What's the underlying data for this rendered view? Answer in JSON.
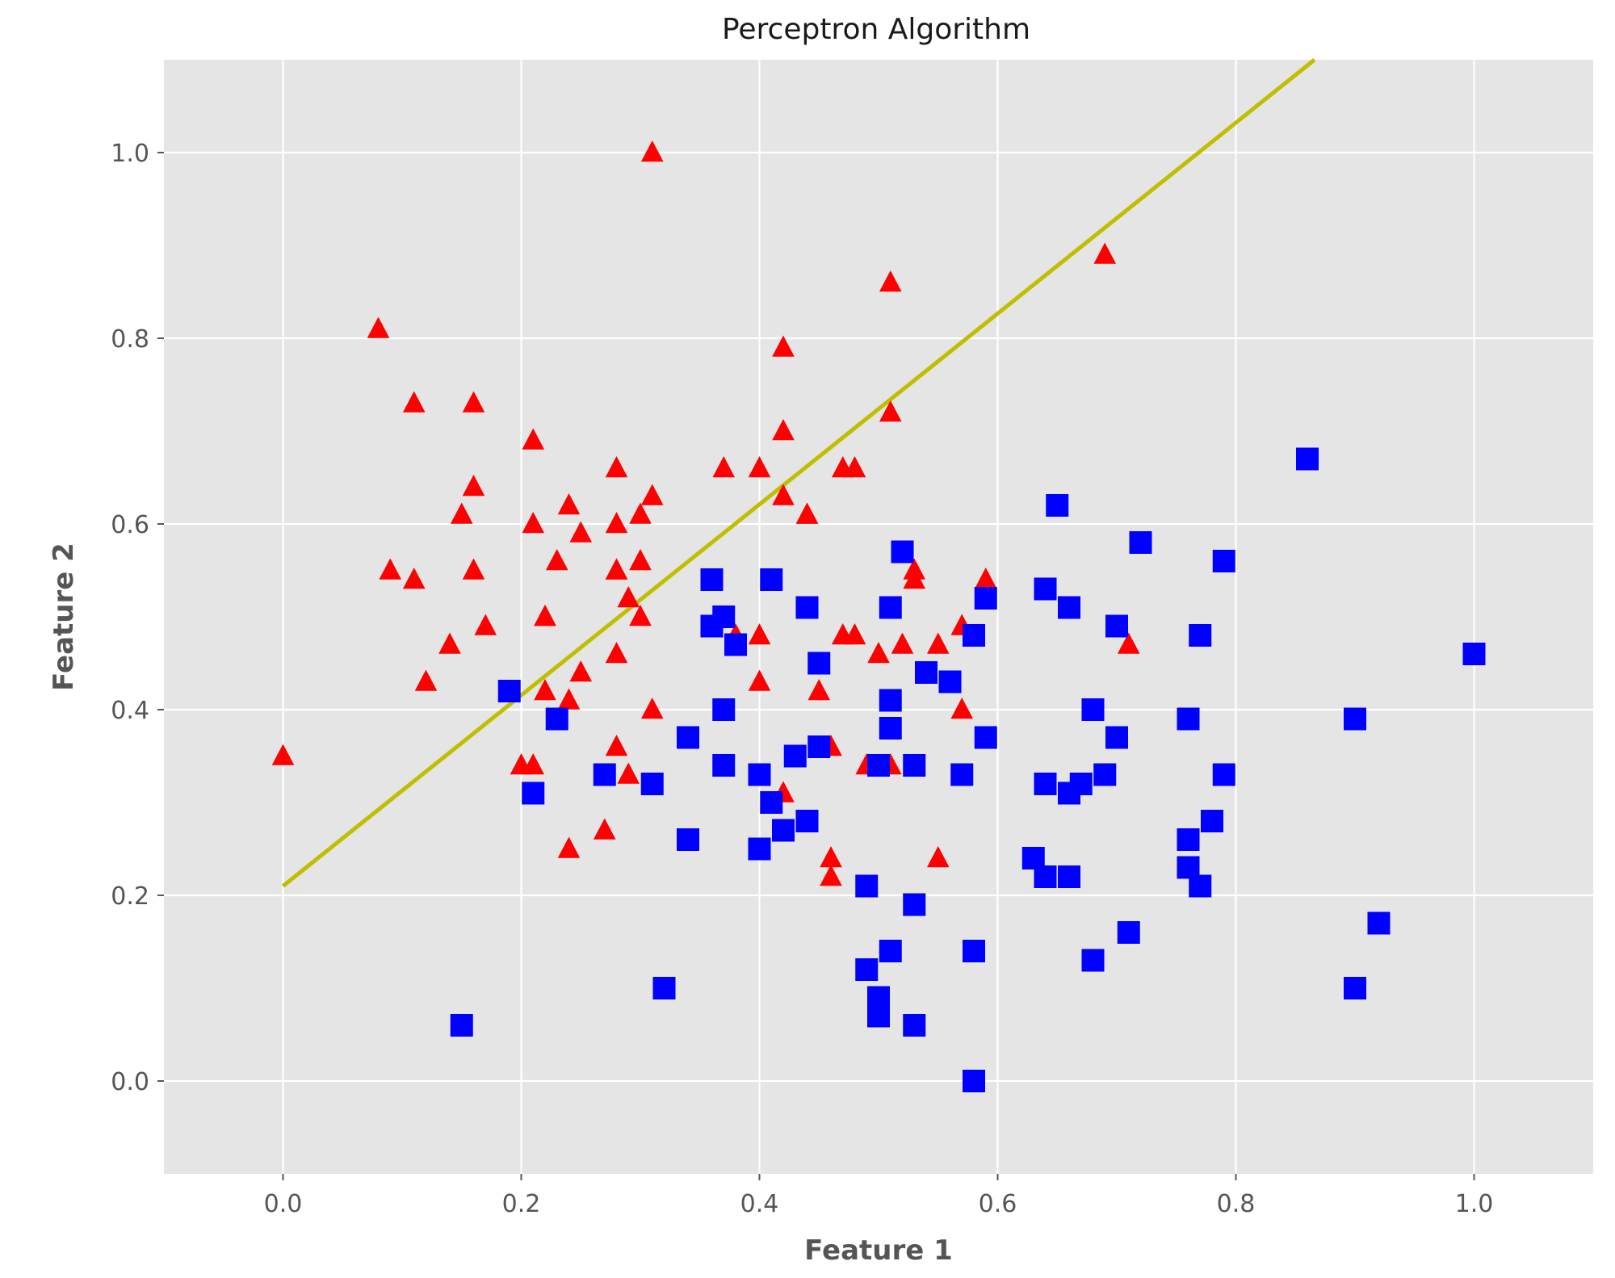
{
  "chart_data": {
    "type": "scatter",
    "title": "Perceptron Algorithm",
    "xlabel": "Feature 1",
    "ylabel": "Feature 2",
    "xlim": [
      -0.1,
      1.1
    ],
    "ylim": [
      -0.1,
      1.1
    ],
    "xticks": [
      "0.0",
      "0.2",
      "0.4",
      "0.6",
      "0.8",
      "1.0"
    ],
    "yticks": [
      "0.0",
      "0.2",
      "0.4",
      "0.6",
      "0.8",
      "1.0"
    ],
    "grid": true,
    "colors": {
      "background": "#e5e5e5",
      "grid": "#ffffff",
      "class_triangle": "#ff0000",
      "class_square": "#0000ff",
      "boundary": "#bfbf00"
    },
    "series": [
      {
        "marker": "triangle",
        "color": "#ff0000",
        "points": [
          [
            0.31,
            1.0
          ],
          [
            0.08,
            0.81
          ],
          [
            0.51,
            0.86
          ],
          [
            0.69,
            0.89
          ],
          [
            0.11,
            0.73
          ],
          [
            0.16,
            0.73
          ],
          [
            0.42,
            0.79
          ],
          [
            0.21,
            0.69
          ],
          [
            0.42,
            0.7
          ],
          [
            0.51,
            0.72
          ],
          [
            0.28,
            0.66
          ],
          [
            0.37,
            0.66
          ],
          [
            0.4,
            0.66
          ],
          [
            0.47,
            0.66
          ],
          [
            0.48,
            0.66
          ],
          [
            0.16,
            0.64
          ],
          [
            0.31,
            0.63
          ],
          [
            0.42,
            0.63
          ],
          [
            0.24,
            0.62
          ],
          [
            0.44,
            0.61
          ],
          [
            0.44,
            0.61
          ],
          [
            0.15,
            0.61
          ],
          [
            0.3,
            0.61
          ],
          [
            0.21,
            0.6
          ],
          [
            0.28,
            0.6
          ],
          [
            0.25,
            0.59
          ],
          [
            0.23,
            0.56
          ],
          [
            0.3,
            0.56
          ],
          [
            0.16,
            0.55
          ],
          [
            0.09,
            0.55
          ],
          [
            0.11,
            0.54
          ],
          [
            0.28,
            0.55
          ],
          [
            0.28,
            0.55
          ],
          [
            0.53,
            0.55
          ],
          [
            0.53,
            0.54
          ],
          [
            0.59,
            0.54
          ],
          [
            0.29,
            0.52
          ],
          [
            0.22,
            0.5
          ],
          [
            0.22,
            0.5
          ],
          [
            0.3,
            0.5
          ],
          [
            0.17,
            0.49
          ],
          [
            0.57,
            0.49
          ],
          [
            0.38,
            0.48
          ],
          [
            0.4,
            0.48
          ],
          [
            0.47,
            0.48
          ],
          [
            0.48,
            0.48
          ],
          [
            0.52,
            0.47
          ],
          [
            0.55,
            0.47
          ],
          [
            0.5,
            0.46
          ],
          [
            0.71,
            0.47
          ],
          [
            0.14,
            0.47
          ],
          [
            0.28,
            0.46
          ],
          [
            0.25,
            0.44
          ],
          [
            0.12,
            0.43
          ],
          [
            0.4,
            0.43
          ],
          [
            0.22,
            0.42
          ],
          [
            0.24,
            0.41
          ],
          [
            0.45,
            0.42
          ],
          [
            0.31,
            0.4
          ],
          [
            0.57,
            0.4
          ],
          [
            0.28,
            0.36
          ],
          [
            0.46,
            0.36
          ],
          [
            0.0,
            0.35
          ],
          [
            0.2,
            0.34
          ],
          [
            0.21,
            0.34
          ],
          [
            0.49,
            0.34
          ],
          [
            0.51,
            0.34
          ],
          [
            0.29,
            0.33
          ],
          [
            0.42,
            0.31
          ],
          [
            0.27,
            0.27
          ],
          [
            0.24,
            0.25
          ],
          [
            0.46,
            0.24
          ],
          [
            0.55,
            0.24
          ],
          [
            0.46,
            0.22
          ]
        ]
      },
      {
        "marker": "square",
        "color": "#0000ff",
        "points": [
          [
            0.86,
            0.67
          ],
          [
            0.65,
            0.62
          ],
          [
            0.72,
            0.58
          ],
          [
            0.52,
            0.57
          ],
          [
            0.79,
            0.56
          ],
          [
            0.41,
            0.54
          ],
          [
            0.36,
            0.54
          ],
          [
            0.64,
            0.53
          ],
          [
            0.59,
            0.52
          ],
          [
            0.66,
            0.51
          ],
          [
            0.44,
            0.51
          ],
          [
            0.51,
            0.51
          ],
          [
            0.37,
            0.5
          ],
          [
            0.36,
            0.49
          ],
          [
            0.7,
            0.49
          ],
          [
            0.58,
            0.48
          ],
          [
            0.77,
            0.48
          ],
          [
            0.38,
            0.47
          ],
          [
            1.0,
            0.46
          ],
          [
            0.45,
            0.45
          ],
          [
            0.54,
            0.44
          ],
          [
            0.56,
            0.43
          ],
          [
            0.19,
            0.42
          ],
          [
            0.51,
            0.41
          ],
          [
            0.68,
            0.4
          ],
          [
            0.37,
            0.4
          ],
          [
            0.23,
            0.39
          ],
          [
            0.76,
            0.39
          ],
          [
            0.9,
            0.39
          ],
          [
            0.51,
            0.38
          ],
          [
            0.34,
            0.37
          ],
          [
            0.59,
            0.37
          ],
          [
            0.7,
            0.37
          ],
          [
            0.45,
            0.36
          ],
          [
            0.43,
            0.35
          ],
          [
            0.37,
            0.34
          ],
          [
            0.53,
            0.34
          ],
          [
            0.5,
            0.34
          ],
          [
            0.79,
            0.33
          ],
          [
            0.4,
            0.33
          ],
          [
            0.57,
            0.33
          ],
          [
            0.27,
            0.33
          ],
          [
            0.69,
            0.33
          ],
          [
            0.31,
            0.32
          ],
          [
            0.64,
            0.32
          ],
          [
            0.67,
            0.32
          ],
          [
            0.66,
            0.31
          ],
          [
            0.21,
            0.31
          ],
          [
            0.41,
            0.3
          ],
          [
            0.44,
            0.28
          ],
          [
            0.78,
            0.28
          ],
          [
            0.42,
            0.27
          ],
          [
            0.34,
            0.26
          ],
          [
            0.76,
            0.26
          ],
          [
            0.4,
            0.25
          ],
          [
            0.63,
            0.24
          ],
          [
            0.76,
            0.23
          ],
          [
            0.64,
            0.22
          ],
          [
            0.66,
            0.22
          ],
          [
            0.77,
            0.21
          ],
          [
            0.49,
            0.21
          ],
          [
            0.53,
            0.19
          ],
          [
            0.92,
            0.17
          ],
          [
            0.71,
            0.16
          ],
          [
            0.51,
            0.14
          ],
          [
            0.58,
            0.14
          ],
          [
            0.68,
            0.13
          ],
          [
            0.49,
            0.12
          ],
          [
            0.9,
            0.1
          ],
          [
            0.32,
            0.1
          ],
          [
            0.5,
            0.09
          ],
          [
            0.5,
            0.07
          ],
          [
            0.53,
            0.06
          ],
          [
            0.15,
            0.06
          ],
          [
            0.58,
            0.0
          ]
        ]
      }
    ],
    "decision_boundary": {
      "x": [
        0.0,
        0.866
      ],
      "y": [
        0.21,
        1.1
      ]
    }
  }
}
